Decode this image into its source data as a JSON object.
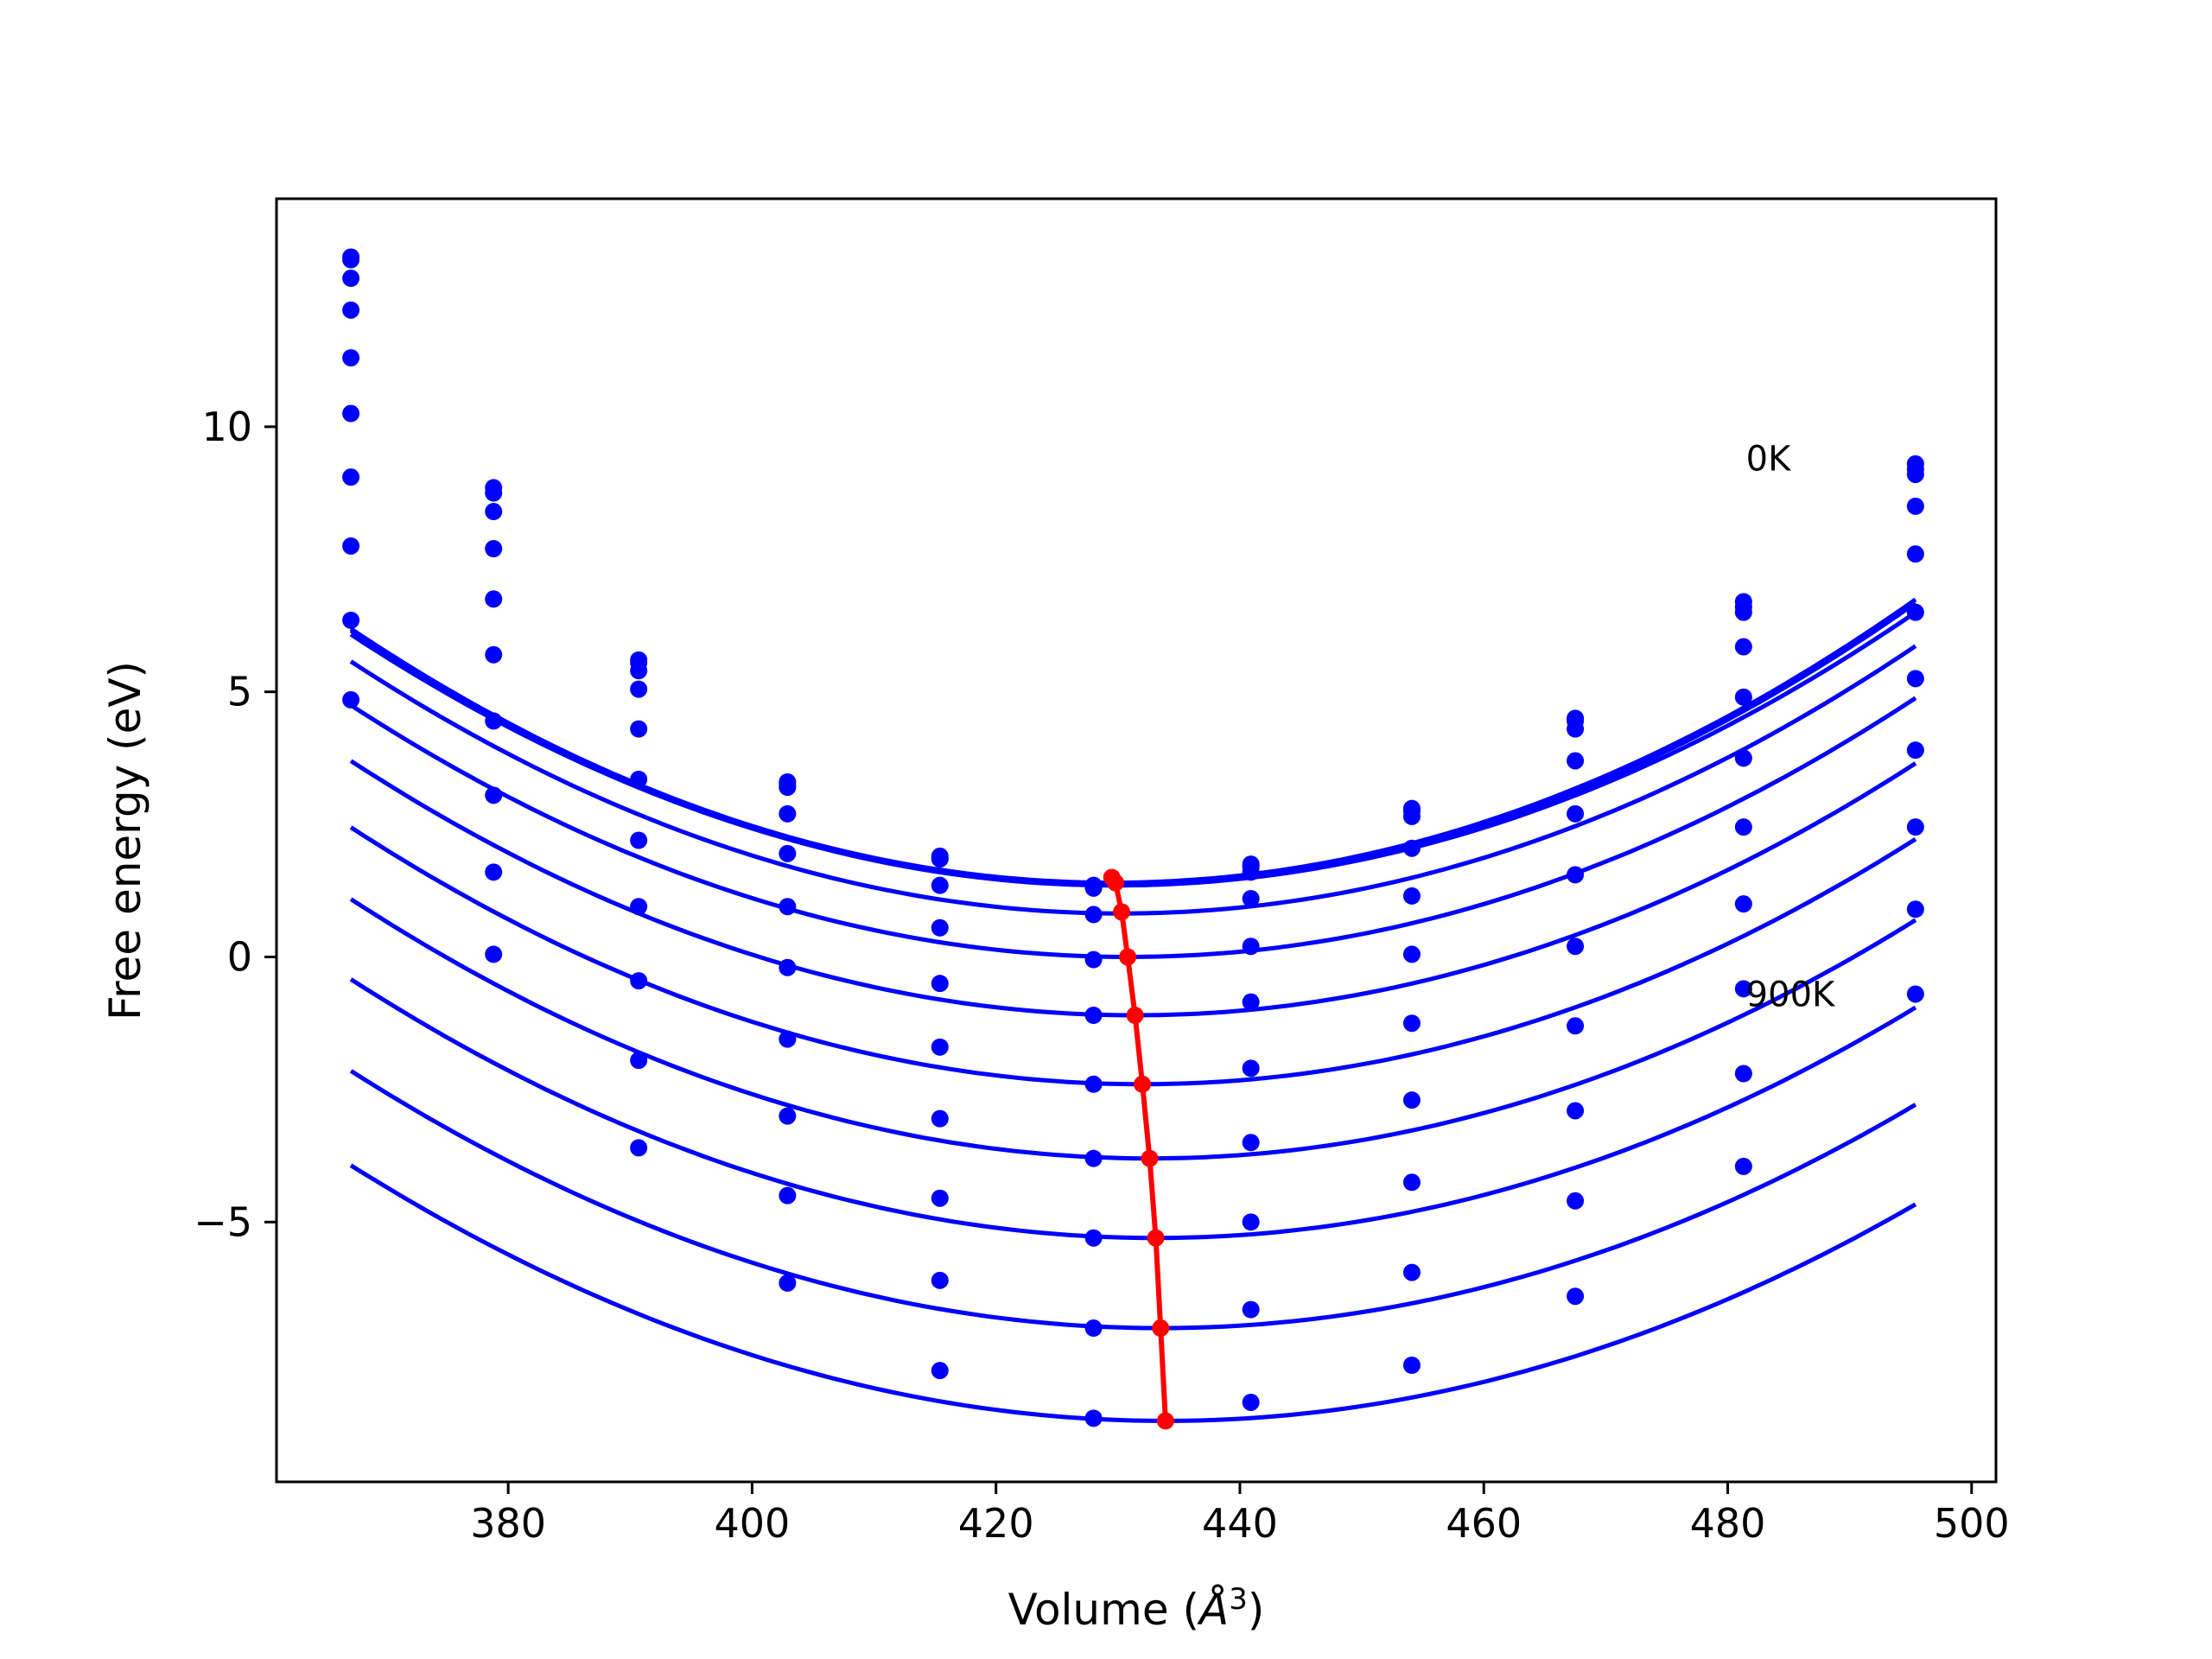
{
  "colors": {
    "series": "#0000ff",
    "minimum_line": "#ff0000",
    "axes": "#000000",
    "background": "#ffffff"
  },
  "chart_data": {
    "type": "line",
    "title": "",
    "xlabel_text": "Volume (",
    "xlabel_unit": "Å",
    "xlabel_exp": "3",
    "xlabel_close": ")",
    "ylabel": "Free energy (eV)",
    "xlim": [
      361,
      502
    ],
    "ylim": [
      -9.9,
      14.3
    ],
    "xticks": [
      380,
      400,
      420,
      440,
      460,
      480,
      500
    ],
    "yticks": [
      -5,
      0,
      5,
      10
    ],
    "ytick_labels": [
      "−5",
      "0",
      "5",
      "10"
    ],
    "grid": false,
    "annotations": [
      {
        "text": "0K",
        "x": 481.5,
        "y": 9.4
      },
      {
        "text": "900K",
        "x": 481.5,
        "y": -0.7
      }
    ],
    "x": [
      367.1,
      378.8,
      390.7,
      402.9,
      415.4,
      428.0,
      440.9,
      454.1,
      467.5,
      481.3,
      495.4
    ],
    "series": [
      {
        "values": [
          13.2,
          8.85,
          5.6,
          3.3,
          1.9,
          1.35,
          1.75,
          2.8,
          4.5,
          6.7,
          9.3
        ]
      },
      {
        "values": [
          13.15,
          8.75,
          5.55,
          3.25,
          1.85,
          1.3,
          1.7,
          2.75,
          4.45,
          6.6,
          9.2
        ]
      },
      {
        "values": [
          12.8,
          8.4,
          5.4,
          3.2,
          1.85,
          1.3,
          1.6,
          2.65,
          4.3,
          6.5,
          9.1
        ]
      },
      {
        "values": [
          12.2,
          7.7,
          5.05,
          2.7,
          1.35,
          0.8,
          1.1,
          2.05,
          3.7,
          5.85,
          8.5
        ]
      },
      {
        "values": [
          11.3,
          6.75,
          4.3,
          1.95,
          0.55,
          -0.05,
          0.2,
          1.15,
          2.7,
          4.9,
          7.6
        ]
      },
      {
        "values": [
          10.25,
          5.7,
          3.35,
          0.95,
          -0.5,
          -1.1,
          -0.85,
          0.05,
          1.55,
          3.75,
          6.5
        ]
      },
      {
        "values": [
          9.05,
          4.45,
          2.2,
          -0.2,
          -1.7,
          -2.4,
          -2.1,
          -1.25,
          0.2,
          2.45,
          5.25
        ]
      },
      {
        "values": [
          7.75,
          3.05,
          0.95,
          -1.55,
          -3.05,
          -3.8,
          -3.5,
          -2.7,
          -1.3,
          1.0,
          3.9
        ]
      },
      {
        "values": [
          6.35,
          1.6,
          -0.45,
          -3.0,
          -4.55,
          -5.3,
          -5.0,
          -4.25,
          -2.9,
          -0.6,
          2.45
        ]
      },
      {
        "values": [
          4.85,
          0.05,
          -1.95,
          -4.5,
          -6.1,
          -7.0,
          -6.65,
          -5.95,
          -4.6,
          -2.2,
          0.9
        ]
      },
      {
        "values": [
          null,
          null,
          -3.6,
          -6.15,
          -7.8,
          -8.7,
          -8.4,
          -7.7,
          -6.4,
          -3.95,
          -0.7
        ]
      }
    ],
    "fit_curves": [
      {
        "vmin": 429.5,
        "emin": 1.4,
        "a": 0.00123
      },
      {
        "vmin": 429.6,
        "emin": 1.35,
        "a": 0.00123
      },
      {
        "vmin": 429.9,
        "emin": 1.35,
        "a": 0.0012
      },
      {
        "vmin": 430.3,
        "emin": 0.82,
        "a": 0.00119
      },
      {
        "vmin": 430.8,
        "emin": 0.0,
        "a": 0.00117
      },
      {
        "vmin": 431.4,
        "emin": -1.1,
        "a": 0.00116
      },
      {
        "vmin": 432.0,
        "emin": -2.4,
        "a": 0.00115
      },
      {
        "vmin": 432.6,
        "emin": -3.8,
        "a": 0.00114
      },
      {
        "vmin": 433.1,
        "emin": -5.3,
        "a": 0.00112
      },
      {
        "vmin": 433.5,
        "emin": -7.0,
        "a": 0.0011
      },
      {
        "vmin": 433.9,
        "emin": -8.75,
        "a": 0.00108
      }
    ],
    "minimum_path": {
      "x": [
        429.5,
        429.8,
        430.3,
        430.8,
        431.4,
        432.0,
        432.6,
        433.1,
        433.5,
        433.9
      ],
      "y": [
        1.5,
        1.4,
        0.85,
        0.0,
        -1.1,
        -2.4,
        -3.8,
        -5.3,
        -7.0,
        -8.75
      ]
    }
  }
}
